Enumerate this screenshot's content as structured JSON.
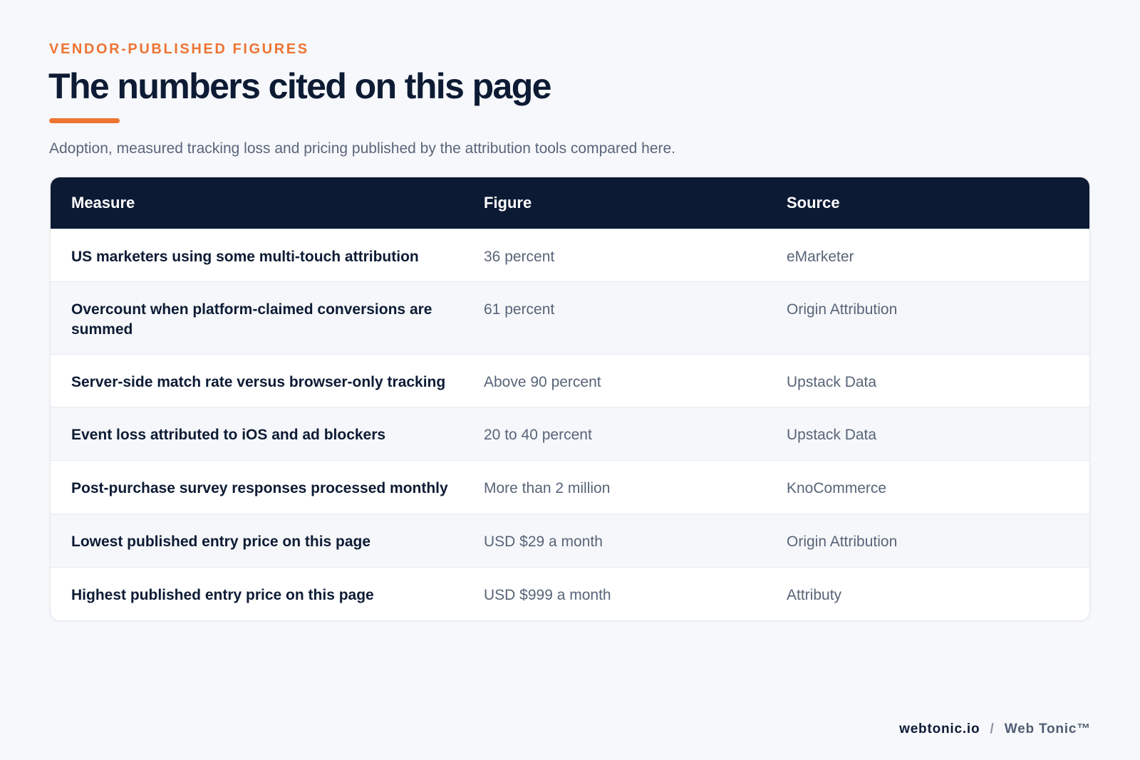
{
  "eyebrow": "VENDOR-PUBLISHED FIGURES",
  "title": "The numbers cited on this page",
  "subtitle": "Adoption, measured tracking loss and pricing published by the attribution tools compared here.",
  "table": {
    "headers": [
      "Measure",
      "Figure",
      "Source"
    ],
    "rows": [
      {
        "measure": "US marketers using some multi-touch attribution",
        "figure": "36 percent",
        "source": "eMarketer"
      },
      {
        "measure": "Overcount when platform-claimed conversions are summed",
        "figure": "61 percent",
        "source": "Origin Attribution"
      },
      {
        "measure": "Server-side match rate versus browser-only tracking",
        "figure": "Above 90 percent",
        "source": "Upstack Data"
      },
      {
        "measure": "Event loss attributed to iOS and ad blockers",
        "figure": "20 to 40 percent",
        "source": "Upstack Data"
      },
      {
        "measure": "Post-purchase survey responses processed monthly",
        "figure": "More than 2 million",
        "source": "KnoCommerce"
      },
      {
        "measure": "Lowest published entry price on this page",
        "figure": "USD $29 a month",
        "source": "Origin Attribution"
      },
      {
        "measure": "Highest published entry price on this page",
        "figure": "USD $999 a month",
        "source": "Attributy"
      }
    ]
  },
  "footer": {
    "domain": "webtonic.io",
    "separator": "/",
    "brand": "Web Tonic™"
  },
  "colors": {
    "accent": "#ee7433",
    "header_bg": "#0d1a33",
    "text_dark": "#0d1b34",
    "text_muted": "#586478"
  }
}
